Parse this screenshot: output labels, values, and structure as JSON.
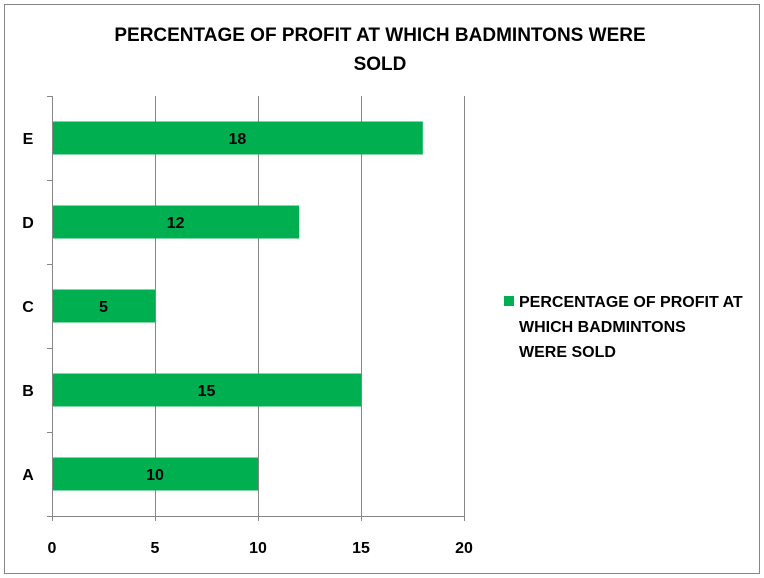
{
  "chart_data": {
    "type": "bar",
    "orientation": "horizontal",
    "title_lines": [
      "PERCENTAGE OF PROFIT AT WHICH BADMINTONS WERE",
      "SOLD"
    ],
    "categories": [
      "A",
      "B",
      "C",
      "D",
      "E"
    ],
    "series": [
      {
        "name": "PERCENTAGE OF PROFIT AT WHICH BADMINTONS WERE SOLD",
        "legend_lines": [
          "PERCENTAGE OF PROFIT AT",
          "WHICH BADMINTONS",
          "WERE SOLD"
        ],
        "values": [
          10,
          15,
          5,
          12,
          18
        ],
        "color": "#00b050"
      }
    ],
    "xlim": [
      0,
      20
    ],
    "x_ticks": [
      0,
      5,
      10,
      15,
      20
    ],
    "grid": true,
    "data_labels": true,
    "legend_position": "right"
  },
  "colors": {
    "bar": "#00b050",
    "grid": "#868686",
    "text": "#000000",
    "frame": "#868686"
  }
}
